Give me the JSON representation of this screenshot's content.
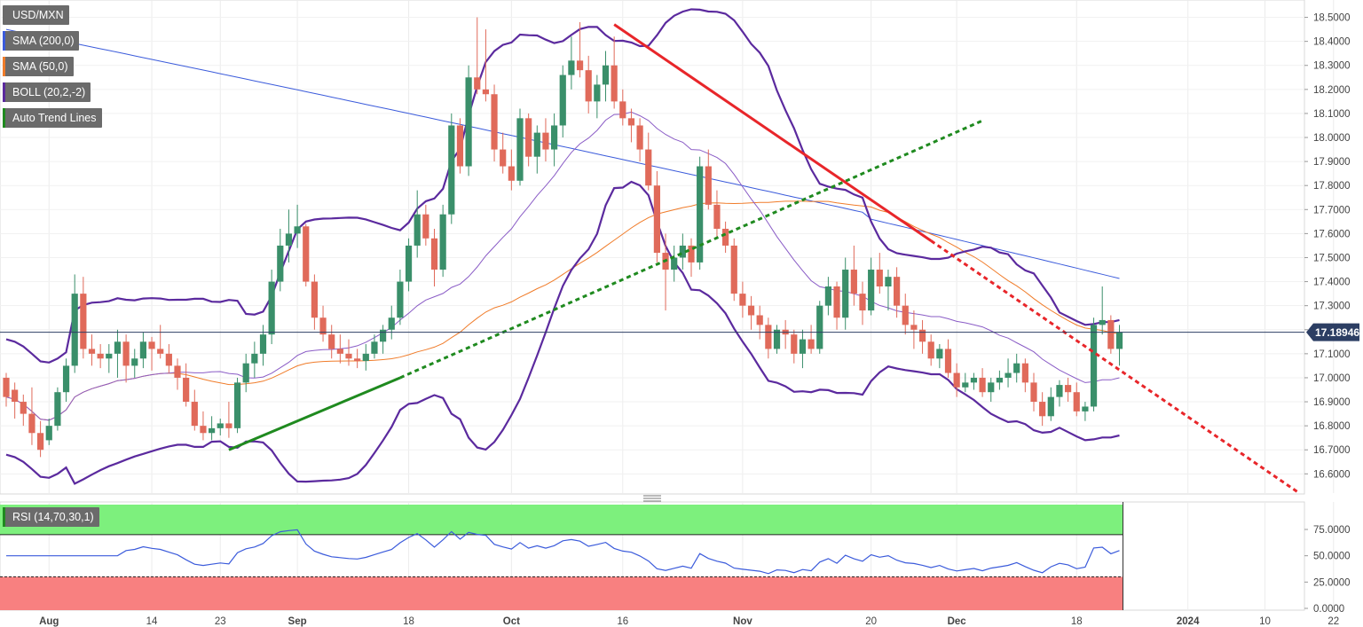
{
  "legend": {
    "symbol": "USD/MXN",
    "sma200": {
      "label": "SMA (200,0)",
      "color": "#3b5bdb"
    },
    "sma50": {
      "label": "SMA (50,0)",
      "color": "#f07c2a"
    },
    "boll": {
      "label": "BOLL (20,2,-2)",
      "color": "#5b2a9e"
    },
    "trend": {
      "label": "Auto Trend Lines",
      "color": "#1f8a1f"
    }
  },
  "rsi_panel": {
    "label": "RSI (14,70,30,1)",
    "overbought": 70,
    "oversold": 30,
    "y_ticks": [
      "75.0000",
      "50.0000",
      "25.0000",
      "0.0000"
    ],
    "y_tick_values": [
      75,
      50,
      25,
      0
    ]
  },
  "colors": {
    "up": "#3a8f6a",
    "down": "#e06a5a",
    "rsi_line": "#3b5bdb",
    "overbought_fill": "#7df07d",
    "oversold_fill": "#f88080"
  },
  "chart_data": {
    "type": "candlestick",
    "title": "USD/MXN",
    "last_price": "17.18946",
    "y_ticks": [
      "18.5000",
      "18.4000",
      "18.3000",
      "18.2000",
      "18.1000",
      "18.0000",
      "17.9000",
      "17.8000",
      "17.7000",
      "17.6000",
      "17.5000",
      "17.4000",
      "17.3000",
      "17.2000",
      "17.1000",
      "17.0000",
      "16.9000",
      "16.8000",
      "16.7000",
      "16.6000"
    ],
    "ylim": [
      16.52,
      18.55
    ],
    "x_ticks": [
      "Aug",
      "14",
      "23",
      "Sep",
      "18",
      "Oct",
      "16",
      "Nov",
      "20",
      "Dec",
      "18",
      "2024",
      "10",
      "22"
    ],
    "x_tick_index": [
      5,
      17,
      25,
      34,
      47,
      59,
      72,
      86,
      101,
      111,
      125,
      138,
      147,
      155
    ],
    "candles": [
      [
        17.0,
        17.02,
        16.88,
        16.92
      ],
      [
        16.95,
        16.98,
        16.83,
        16.9
      ],
      [
        16.9,
        16.93,
        16.8,
        16.85
      ],
      [
        16.85,
        16.96,
        16.72,
        16.77
      ],
      [
        16.77,
        16.82,
        16.67,
        16.7
      ],
      [
        16.74,
        16.83,
        16.72,
        16.8
      ],
      [
        16.8,
        16.96,
        16.78,
        16.94
      ],
      [
        16.94,
        17.08,
        16.9,
        17.05
      ],
      [
        17.05,
        17.43,
        17.02,
        17.35
      ],
      [
        17.35,
        17.42,
        17.08,
        17.12
      ],
      [
        17.12,
        17.18,
        17.05,
        17.1
      ],
      [
        17.1,
        17.14,
        17.04,
        17.08
      ],
      [
        17.08,
        17.14,
        17.02,
        17.1
      ],
      [
        17.1,
        17.2,
        17.0,
        17.15
      ],
      [
        17.15,
        17.18,
        16.98,
        17.05
      ],
      [
        17.05,
        17.12,
        17.0,
        17.08
      ],
      [
        17.08,
        17.19,
        17.04,
        17.15
      ],
      [
        17.15,
        17.17,
        17.03,
        17.12
      ],
      [
        17.12,
        17.22,
        17.08,
        17.1
      ],
      [
        17.1,
        17.14,
        17.02,
        17.05
      ],
      [
        17.05,
        17.08,
        16.95,
        17.0
      ],
      [
        17.0,
        17.06,
        16.88,
        16.9
      ],
      [
        16.9,
        16.95,
        16.78,
        16.8
      ],
      [
        16.8,
        16.86,
        16.74,
        16.77
      ],
      [
        16.77,
        16.84,
        16.74,
        16.79
      ],
      [
        16.79,
        16.83,
        16.76,
        16.81
      ],
      [
        16.81,
        16.9,
        16.75,
        16.79
      ],
      [
        16.79,
        17.0,
        16.77,
        16.98
      ],
      [
        16.98,
        17.1,
        16.94,
        17.06
      ],
      [
        17.06,
        17.15,
        17.0,
        17.1
      ],
      [
        17.1,
        17.22,
        17.05,
        17.18
      ],
      [
        17.18,
        17.45,
        17.14,
        17.4
      ],
      [
        17.4,
        17.62,
        17.36,
        17.55
      ],
      [
        17.55,
        17.7,
        17.48,
        17.6
      ],
      [
        17.6,
        17.72,
        17.54,
        17.63
      ],
      [
        17.63,
        17.64,
        17.38,
        17.4
      ],
      [
        17.4,
        17.43,
        17.2,
        17.25
      ],
      [
        17.25,
        17.3,
        17.15,
        17.18
      ],
      [
        17.18,
        17.22,
        17.08,
        17.12
      ],
      [
        17.12,
        17.18,
        17.06,
        17.1
      ],
      [
        17.1,
        17.16,
        17.05,
        17.08
      ],
      [
        17.08,
        17.12,
        17.04,
        17.07
      ],
      [
        17.07,
        17.14,
        17.03,
        17.1
      ],
      [
        17.1,
        17.18,
        17.08,
        17.15
      ],
      [
        17.15,
        17.22,
        17.1,
        17.2
      ],
      [
        17.2,
        17.3,
        17.16,
        17.25
      ],
      [
        17.25,
        17.45,
        17.22,
        17.4
      ],
      [
        17.4,
        17.58,
        17.36,
        17.55
      ],
      [
        17.55,
        17.78,
        17.5,
        17.68
      ],
      [
        17.68,
        17.72,
        17.55,
        17.58
      ],
      [
        17.58,
        17.62,
        17.38,
        17.45
      ],
      [
        17.45,
        17.72,
        17.42,
        17.68
      ],
      [
        17.68,
        18.1,
        17.64,
        18.05
      ],
      [
        18.05,
        18.08,
        17.85,
        17.88
      ],
      [
        17.88,
        18.3,
        17.84,
        18.25
      ],
      [
        18.25,
        18.5,
        18.18,
        18.2
      ],
      [
        18.2,
        18.45,
        18.15,
        18.18
      ],
      [
        18.18,
        18.22,
        17.9,
        17.95
      ],
      [
        17.95,
        18.02,
        17.85,
        17.88
      ],
      [
        17.88,
        17.95,
        17.78,
        17.82
      ],
      [
        17.82,
        18.12,
        17.8,
        18.08
      ],
      [
        18.08,
        18.1,
        17.88,
        17.92
      ],
      [
        17.92,
        18.05,
        17.85,
        18.02
      ],
      [
        18.02,
        18.08,
        17.9,
        17.95
      ],
      [
        17.95,
        18.1,
        17.88,
        18.05
      ],
      [
        18.05,
        18.3,
        18.0,
        18.26
      ],
      [
        18.26,
        18.42,
        18.2,
        18.32
      ],
      [
        18.32,
        18.48,
        18.25,
        18.28
      ],
      [
        18.28,
        18.34,
        18.1,
        18.15
      ],
      [
        18.15,
        18.26,
        18.08,
        18.22
      ],
      [
        18.22,
        18.36,
        18.15,
        18.3
      ],
      [
        18.3,
        18.42,
        18.12,
        18.15
      ],
      [
        18.15,
        18.2,
        18.05,
        18.08
      ],
      [
        18.08,
        18.12,
        17.98,
        18.05
      ],
      [
        18.05,
        18.08,
        17.9,
        17.95
      ],
      [
        17.95,
        18.02,
        17.78,
        17.8
      ],
      [
        17.8,
        17.86,
        17.48,
        17.52
      ],
      [
        17.52,
        17.6,
        17.28,
        17.45
      ],
      [
        17.45,
        17.55,
        17.4,
        17.5
      ],
      [
        17.5,
        17.6,
        17.45,
        17.55
      ],
      [
        17.55,
        17.58,
        17.42,
        17.48
      ],
      [
        17.48,
        17.92,
        17.45,
        17.88
      ],
      [
        17.88,
        17.95,
        17.7,
        17.72
      ],
      [
        17.72,
        17.78,
        17.58,
        17.62
      ],
      [
        17.62,
        17.65,
        17.52,
        17.55
      ],
      [
        17.55,
        17.58,
        17.32,
        17.35
      ],
      [
        17.35,
        17.4,
        17.25,
        17.3
      ],
      [
        17.3,
        17.34,
        17.2,
        17.26
      ],
      [
        17.26,
        17.3,
        17.16,
        17.22
      ],
      [
        17.22,
        17.25,
        17.08,
        17.12
      ],
      [
        17.12,
        17.22,
        17.1,
        17.2
      ],
      [
        17.2,
        17.24,
        17.12,
        17.18
      ],
      [
        17.18,
        17.2,
        17.06,
        17.1
      ],
      [
        17.1,
        17.2,
        17.04,
        17.16
      ],
      [
        17.16,
        17.22,
        17.1,
        17.12
      ],
      [
        17.12,
        17.32,
        17.1,
        17.3
      ],
      [
        17.3,
        17.42,
        17.26,
        17.38
      ],
      [
        17.38,
        17.4,
        17.2,
        17.25
      ],
      [
        17.25,
        17.5,
        17.2,
        17.45
      ],
      [
        17.45,
        17.55,
        17.3,
        17.35
      ],
      [
        17.35,
        17.4,
        17.22,
        17.28
      ],
      [
        17.28,
        17.5,
        17.26,
        17.45
      ],
      [
        17.45,
        17.52,
        17.35,
        17.38
      ],
      [
        17.38,
        17.45,
        17.28,
        17.42
      ],
      [
        17.42,
        17.46,
        17.25,
        17.3
      ],
      [
        17.3,
        17.35,
        17.18,
        17.22
      ],
      [
        17.22,
        17.28,
        17.12,
        17.2
      ],
      [
        17.2,
        17.24,
        17.1,
        17.15
      ],
      [
        17.15,
        17.18,
        17.05,
        17.08
      ],
      [
        17.08,
        17.14,
        17.04,
        17.12
      ],
      [
        17.12,
        17.16,
        17.0,
        17.02
      ],
      [
        17.02,
        17.06,
        16.92,
        16.96
      ],
      [
        16.96,
        17.02,
        16.94,
        16.98
      ],
      [
        16.98,
        17.02,
        16.95,
        17.0
      ],
      [
        17.0,
        17.04,
        16.92,
        16.94
      ],
      [
        16.94,
        17.0,
        16.9,
        16.98
      ],
      [
        16.98,
        17.03,
        16.95,
        17.0
      ],
      [
        17.0,
        17.08,
        16.96,
        17.02
      ],
      [
        17.02,
        17.1,
        16.98,
        17.06
      ],
      [
        17.06,
        17.08,
        16.94,
        16.98
      ],
      [
        16.98,
        17.02,
        16.86,
        16.9
      ],
      [
        16.9,
        16.94,
        16.8,
        16.84
      ],
      [
        16.84,
        16.96,
        16.82,
        16.92
      ],
      [
        16.92,
        16.99,
        16.88,
        16.97
      ],
      [
        16.97,
        17.0,
        16.9,
        16.94
      ],
      [
        16.94,
        16.98,
        16.84,
        16.86
      ],
      [
        16.86,
        16.9,
        16.82,
        16.88
      ],
      [
        16.88,
        17.25,
        16.86,
        17.22
      ],
      [
        17.22,
        17.38,
        17.18,
        17.24
      ],
      [
        17.24,
        17.26,
        17.1,
        17.12
      ],
      [
        17.12,
        17.22,
        17.05,
        17.19
      ]
    ]
  }
}
